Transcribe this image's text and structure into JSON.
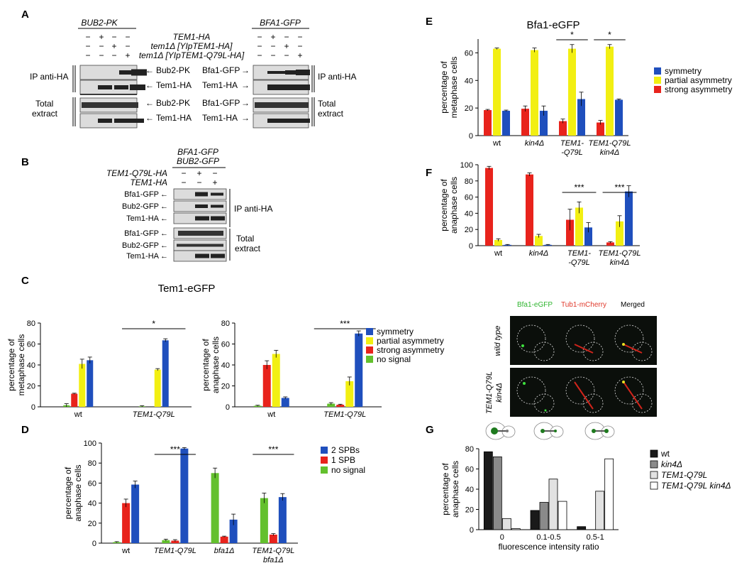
{
  "colors": {
    "red": "#e8231c",
    "yellow": "#f2ef12",
    "blue": "#1f4fbd",
    "green": "#63c02d",
    "black": "#1a1a1a",
    "dgray": "#8a8a8a",
    "lgray": "#e2e2e2",
    "white": "#ffffff",
    "blot": "#cfcfcf"
  },
  "panels": {
    "A": {
      "letter": "A",
      "left_title": "BUB2-PK",
      "right_title": "BFA1-GFP",
      "rows": [
        {
          "label": "TEM1-HA",
          "left": [
            "−",
            "+",
            "−",
            "−"
          ],
          "right": [
            "−",
            "+",
            "−",
            "−"
          ]
        },
        {
          "label": "tem1Δ [YIpTEM1-HA]",
          "left": [
            "−",
            "−",
            "+",
            "−"
          ],
          "right": [
            "−",
            "−",
            "+",
            "−"
          ]
        },
        {
          "label": "tem1Δ [YIpTEM1-Q79L-HA]",
          "left": [
            "−",
            "−",
            "−",
            "+"
          ],
          "right": [
            "−",
            "−",
            "−",
            "+"
          ]
        }
      ],
      "left_blots": [
        "Bub2-PK",
        "Tem1-HA",
        "Bub2-PK",
        "Tem1-HA"
      ],
      "right_blots": [
        "Bfa1-GFP",
        "Tem1-HA",
        "Bfa1-GFP",
        "Tem1-HA"
      ],
      "ip": "IP anti-HA",
      "total1": "Total",
      "total2": "extract"
    },
    "B": {
      "letter": "B",
      "title1": "BFA1-GFP",
      "title2": "BUB2-GFP",
      "rows": [
        {
          "label": "TEM1-Q79L-HA",
          "signs": [
            "−",
            "+",
            "−"
          ]
        },
        {
          "label": "TEM1-HA",
          "signs": [
            "−",
            "−",
            "+"
          ]
        }
      ],
      "blots": [
        "Bfa1-GFP",
        "Bub2-GFP",
        "Tem1-HA",
        "Bfa1-GFP",
        "Bub2-GFP",
        "Tem1-HA"
      ],
      "ip": "IP anti-HA",
      "total1": "Total",
      "total2": "extract"
    },
    "C": {
      "letter": "C",
      "title": "Tem1-eGFP"
    },
    "D": {
      "letter": "D"
    },
    "E": {
      "letter": "E",
      "title": "Bfa1-eGFP"
    },
    "F": {
      "letter": "F",
      "micro": {
        "cols": [
          "Bfa1-eGFP",
          "Tub1-mCherry",
          "Merged"
        ],
        "rows": [
          "wild type",
          "TEM1-Q79L kin4Δ"
        ],
        "row2a": "TEM1-Q79L",
        "row2b": "kin4Δ"
      }
    },
    "G": {
      "letter": "G"
    }
  },
  "chart_data": [
    {
      "id": "C1",
      "type": "bar",
      "ylabel": "percentage of metaphase cells",
      "ylabel1": "percentage of",
      "ylabel2": "metaphase cells",
      "ylim": [
        0,
        80
      ],
      "ticks": [
        0,
        20,
        40,
        60,
        80
      ],
      "categories": [
        "wt",
        "TEM1-Q79L"
      ],
      "series": [
        {
          "name": "no signal",
          "color": "green",
          "values": [
            1.5,
            0.5
          ],
          "err": [
            1.5,
            0.5
          ]
        },
        {
          "name": "strong asymmetry",
          "color": "red",
          "values": [
            12.5,
            0
          ],
          "err": [
            0.5,
            0
          ]
        },
        {
          "name": "partial asymmetry",
          "color": "yellow",
          "values": [
            41,
            35.5
          ],
          "err": [
            4.5,
            1
          ]
        },
        {
          "name": "symmetry",
          "color": "blue",
          "values": [
            44.5,
            63.5
          ],
          "err": [
            3,
            1.5
          ]
        }
      ],
      "sig": [
        {
          "label": "*",
          "cat": 1
        }
      ]
    },
    {
      "id": "C2",
      "type": "bar",
      "ylabel": "percentage of anaphase cells",
      "ylabel1": "percentage of",
      "ylabel2": "anaphase cells",
      "ylim": [
        0,
        80
      ],
      "ticks": [
        0,
        20,
        40,
        60,
        80
      ],
      "categories": [
        "wt",
        "TEM1-Q79L"
      ],
      "series": [
        {
          "name": "no signal",
          "color": "green",
          "values": [
            1,
            3
          ],
          "err": [
            0.5,
            1
          ]
        },
        {
          "name": "strong asymmetry",
          "color": "red",
          "values": [
            40,
            2
          ],
          "err": [
            4,
            0.5
          ]
        },
        {
          "name": "partial asymmetry",
          "color": "yellow",
          "values": [
            50.5,
            24.5
          ],
          "err": [
            3.5,
            4
          ]
        },
        {
          "name": "symmetry",
          "color": "blue",
          "values": [
            8.5,
            70
          ],
          "err": [
            1,
            2.5
          ]
        }
      ],
      "sig": [
        {
          "label": "***",
          "cat": 1
        }
      ],
      "legend": [
        "symmetry",
        "partial asymmetry",
        "strong asymmetry",
        "no signal"
      ],
      "legend_colors": [
        "blue",
        "yellow",
        "red",
        "green"
      ]
    },
    {
      "id": "D",
      "type": "bar",
      "ylabel": "percentage of anaphase cells",
      "ylabel1": "percentage of",
      "ylabel2": "anaphase cells",
      "ylim": [
        0,
        100
      ],
      "ticks": [
        0,
        20,
        40,
        60,
        80,
        100
      ],
      "categories": [
        "wt",
        "TEM1-Q79L",
        "bfa1Δ",
        "TEM1-Q79L bfa1Δ"
      ],
      "cat_lines": [
        [
          "wt"
        ],
        [
          "TEM1-Q79L"
        ],
        [
          "bfa1Δ"
        ],
        [
          "TEM1-Q79L",
          "bfa1Δ"
        ]
      ],
      "series": [
        {
          "name": "no signal",
          "color": "green",
          "values": [
            1,
            3,
            70,
            45
          ],
          "err": [
            0.5,
            1,
            5,
            5
          ]
        },
        {
          "name": "1 SPB",
          "color": "red",
          "values": [
            40,
            2.5,
            6.5,
            8.5
          ],
          "err": [
            4,
            1,
            0.5,
            1
          ]
        },
        {
          "name": "2 SPBs",
          "color": "blue",
          "values": [
            58.5,
            94.5,
            23.5,
            46
          ],
          "err": [
            3.5,
            1,
            5.5,
            3.5
          ]
        }
      ],
      "sig": [
        {
          "label": "***",
          "cat": 1
        },
        {
          "label": "***",
          "cat": 3
        }
      ],
      "legend": [
        "2 SPBs",
        "1 SPB",
        "no signal"
      ],
      "legend_colors": [
        "blue",
        "red",
        "green"
      ]
    },
    {
      "id": "E",
      "type": "bar",
      "ylabel": "percentage of metaphase cells",
      "ylabel1": "percentage of",
      "ylabel2": "metaphase cells",
      "ylim": [
        0,
        70
      ],
      "ticks": [
        0,
        20,
        40,
        60
      ],
      "categories": [
        "wt",
        "kin4Δ",
        "TEM1-Q79L",
        "TEM1-Q79L kin4Δ"
      ],
      "cat_lines": [
        [
          "wt"
        ],
        [
          "kin4Δ"
        ],
        [
          "TEM1-",
          "-Q79L"
        ],
        [
          "TEM1-Q79L",
          "kin4Δ"
        ]
      ],
      "series": [
        {
          "name": "strong asymmetry",
          "color": "red",
          "values": [
            18.5,
            19.5,
            10.5,
            9.5
          ],
          "err": [
            0.5,
            2,
            1.5,
            1.5
          ]
        },
        {
          "name": "partial asymmetry",
          "color": "yellow",
          "values": [
            63,
            62,
            63,
            64.5
          ],
          "err": [
            0.5,
            1.5,
            3,
            1.5
          ]
        },
        {
          "name": "symmetry",
          "color": "blue",
          "values": [
            18,
            18,
            26.5,
            26
          ],
          "err": [
            0.5,
            3.5,
            5,
            0.5
          ]
        }
      ],
      "sig": [
        {
          "label": "*",
          "cat": 2
        },
        {
          "label": "*",
          "cat": 3
        }
      ],
      "legend": [
        "symmetry",
        "partial asymmetry",
        "strong asymmetry"
      ],
      "legend_colors": [
        "blue",
        "yellow",
        "red"
      ]
    },
    {
      "id": "F",
      "type": "bar",
      "ylabel": "percentage of anaphase cells",
      "ylabel1": "percentage of",
      "ylabel2": "anaphase cells",
      "ylim": [
        0,
        100
      ],
      "ticks": [
        0,
        20,
        40,
        60,
        80,
        100
      ],
      "categories": [
        "wt",
        "kin4Δ",
        "TEM1-Q79L",
        "TEM1-Q79L kin4Δ"
      ],
      "cat_lines": [
        [
          "wt"
        ],
        [
          "kin4Δ"
        ],
        [
          "TEM1-",
          "-Q79L"
        ],
        [
          "TEM1-Q79L",
          "kin4Δ"
        ]
      ],
      "series": [
        {
          "name": "strong asymmetry",
          "color": "red",
          "values": [
            96,
            88,
            32,
            4
          ],
          "err": [
            2,
            2,
            13,
            1
          ]
        },
        {
          "name": "partial asymmetry",
          "color": "yellow",
          "values": [
            7,
            12,
            47,
            30
          ],
          "err": [
            1.5,
            2,
            7,
            7
          ]
        },
        {
          "name": "symmetry",
          "color": "blue",
          "values": [
            1,
            1,
            22.5,
            67
          ],
          "err": [
            0.5,
            0.5,
            6,
            7
          ]
        }
      ],
      "sig": [
        {
          "label": "***",
          "cat": 2
        },
        {
          "label": "***",
          "cat": 3
        }
      ]
    },
    {
      "id": "G",
      "type": "bar",
      "ylabel": "percentage of anaphase cells",
      "ylabel1": "percentage of",
      "ylabel2": "anaphase cells",
      "xlabel": "fluorescence intensity ratio",
      "ylim": [
        0,
        80
      ],
      "ticks": [
        0,
        20,
        40,
        60,
        80
      ],
      "categories": [
        "0",
        "0.1-0.5",
        "0.5-1"
      ],
      "series": [
        {
          "name": "wt",
          "color": "black",
          "values": [
            77,
            19,
            3
          ]
        },
        {
          "name": "kin4Δ",
          "color": "dgray",
          "values": [
            72,
            27,
            0
          ]
        },
        {
          "name": "TEM1-Q79L",
          "color": "lgray",
          "values": [
            11,
            50,
            38
          ]
        },
        {
          "name": "TEM1-Q79L kin4Δ",
          "color": "white",
          "values": [
            1,
            28,
            70
          ]
        }
      ],
      "legend": [
        "wt",
        "kin4Δ",
        "TEM1-Q79L",
        "TEM1-Q79L kin4Δ"
      ],
      "legend_colors": [
        "black",
        "dgray",
        "lgray",
        "white"
      ]
    }
  ]
}
